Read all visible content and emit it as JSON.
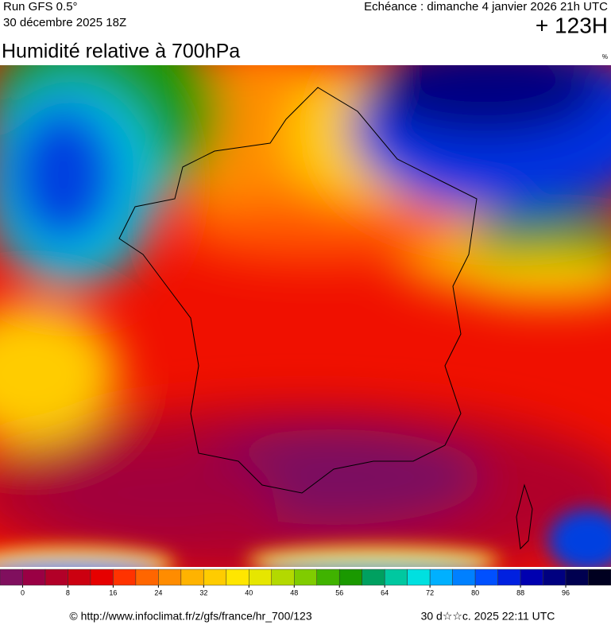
{
  "header": {
    "run": "Run GFS 0.5°",
    "run_date": "30 décembre 2025 18Z",
    "valid": "Echéance : dimanche 4 janvier 2026 21h UTC",
    "lead": "+ 123H"
  },
  "title": "Humidité relative à 700hPa",
  "unit": "%",
  "colorbar": {
    "lim": [
      -4,
      104
    ],
    "step": 4,
    "colors": [
      "#800f5e",
      "#9a0044",
      "#b20028",
      "#cc0010",
      "#e60000",
      "#ff3300",
      "#ff6600",
      "#ff8c00",
      "#ffb300",
      "#ffcc00",
      "#ffe600",
      "#e6e600",
      "#b3d900",
      "#80cc00",
      "#40b300",
      "#1a9900",
      "#00a060",
      "#00c8a0",
      "#00e0e0",
      "#00b0ff",
      "#0080ff",
      "#0050ff",
      "#0020e0",
      "#0000b0",
      "#000080",
      "#000050",
      "#000020"
    ],
    "ticks": [
      0,
      8,
      16,
      24,
      32,
      40,
      48,
      56,
      64,
      72,
      80,
      88,
      96
    ]
  },
  "footer": {
    "source": "© http://www.infoclimat.fr/z/gfs/france/hr_700/123",
    "generated": "30 d☆☆c. 2025 22:11 UTC"
  }
}
